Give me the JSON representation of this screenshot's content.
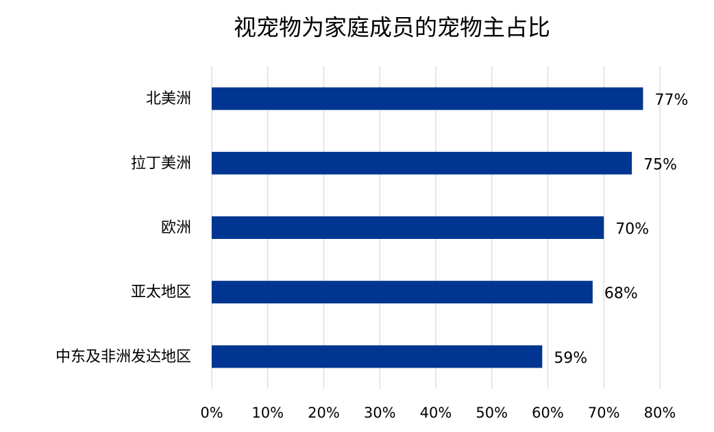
{
  "chart_data": {
    "type": "bar",
    "orientation": "horizontal",
    "title": "视宠物为家庭成员的宠物主占比",
    "categories": [
      "北美洲",
      "拉丁美洲",
      "欧洲",
      "亚太地区",
      "中东及非洲发达地区"
    ],
    "values": [
      77,
      75,
      70,
      68,
      59
    ],
    "value_labels": [
      "77%",
      "75%",
      "70%",
      "68%",
      "59%"
    ],
    "color": "#003591",
    "xlim": [
      0,
      80
    ],
    "xticks": [
      {
        "value": 0,
        "label": "0%"
      },
      {
        "value": 10,
        "label": "10%"
      },
      {
        "value": 20,
        "label": "20%"
      },
      {
        "value": 30,
        "label": "30%"
      },
      {
        "value": 40,
        "label": "40%"
      },
      {
        "value": 50,
        "label": "50%"
      },
      {
        "value": 60,
        "label": "60%"
      },
      {
        "value": 70,
        "label": "70%"
      },
      {
        "value": 80,
        "label": "80%"
      }
    ],
    "grid": true
  }
}
